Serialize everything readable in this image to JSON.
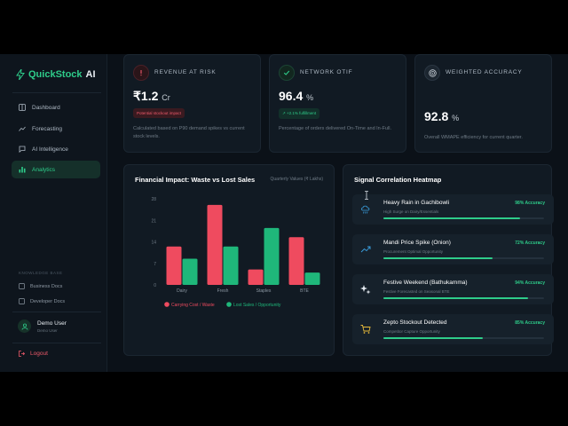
{
  "brand": {
    "name_part1": "QuickStock",
    "name_part2": "AI"
  },
  "nav": {
    "items": [
      {
        "label": "Dashboard",
        "icon": "grid-icon",
        "active": false
      },
      {
        "label": "Forecasting",
        "icon": "trend-icon",
        "active": false
      },
      {
        "label": "AI Intelligence",
        "icon": "chat-icon",
        "active": false
      },
      {
        "label": "Analytics",
        "icon": "bar-chart-icon",
        "active": true
      }
    ]
  },
  "knowledge": {
    "title": "KNOWLEDGE BASE",
    "items": [
      "Business Docs",
      "Developer Docs"
    ]
  },
  "user": {
    "name": "Demo User",
    "role": "Demo User"
  },
  "logout": "Logout",
  "kpis": [
    {
      "title": "REVENUE AT RISK",
      "value": "₹1.2",
      "unit": "Cr",
      "badge": "Potential stockout impact",
      "desc": "Calculated based on P90 demand spikes vs current stock levels.",
      "color": "#ef5a6b",
      "icon": "alert-circle-icon"
    },
    {
      "title": "NETWORK OTIF",
      "value": "96.4",
      "unit": "%",
      "badge": "↗ +2.1% fulfillment",
      "desc": "Percentage of orders delivered On-Time and In-Full.",
      "color": "#2ecc8a",
      "icon": "check-circle-icon"
    },
    {
      "title": "WEIGHTED ACCURACY",
      "value": "92.8",
      "unit": "%",
      "desc": "Overall WMAPE efficiency for current quarter.",
      "color": "#aeb9c4",
      "icon": "target-icon"
    }
  ],
  "chart_panel": {
    "title": "Financial Impact: Waste vs Lost Sales",
    "subtitle": "Quarterly Values (₹ Lakhs)"
  },
  "chart_data": {
    "type": "bar",
    "title": "Financial Impact: Waste vs Lost Sales",
    "subtitle": "Quarterly Values (₹ Lakhs)",
    "categories": [
      "Dairy",
      "Fresh",
      "Staples",
      "BTE"
    ],
    "series": [
      {
        "name": "Carrying Cost / Waste",
        "color": "#ef4b5f",
        "values": [
          12.5,
          26,
          5,
          15.5
        ]
      },
      {
        "name": "Lost Sales / Opportunity",
        "color": "#1fb77a",
        "values": [
          8.5,
          12.5,
          18.5,
          4
        ]
      }
    ],
    "yticks": [
      "0",
      "7",
      "14",
      "21",
      "28"
    ],
    "ylim": [
      0,
      28
    ],
    "grid": false,
    "legend": "bottom"
  },
  "heatmap": {
    "title": "Signal Correlation Heatmap",
    "signals": [
      {
        "name": "Heavy Rain in Gachibowli",
        "desc": "High Surge on Dairy/Essentials",
        "accuracy": "98% Accuracy",
        "level": 0.85,
        "icon": "cloud-rain-icon"
      },
      {
        "name": "Mandi Price Spike (Onion)",
        "desc": "Procurement Optimal Opportunity",
        "accuracy": "72% Accuracy",
        "level": 0.68,
        "icon": "trend-up-icon"
      },
      {
        "name": "Festive Weekend (Bathukamma)",
        "desc": "Festive Forecasted on Seasonal BTE",
        "accuracy": "94% Accuracy",
        "level": 0.9,
        "icon": "sparkle-icon"
      },
      {
        "name": "Zepto Stockout Detected",
        "desc": "Competitor Capture Opportunity",
        "accuracy": "85% Accuracy",
        "level": 0.62,
        "icon": "cart-icon"
      }
    ]
  }
}
